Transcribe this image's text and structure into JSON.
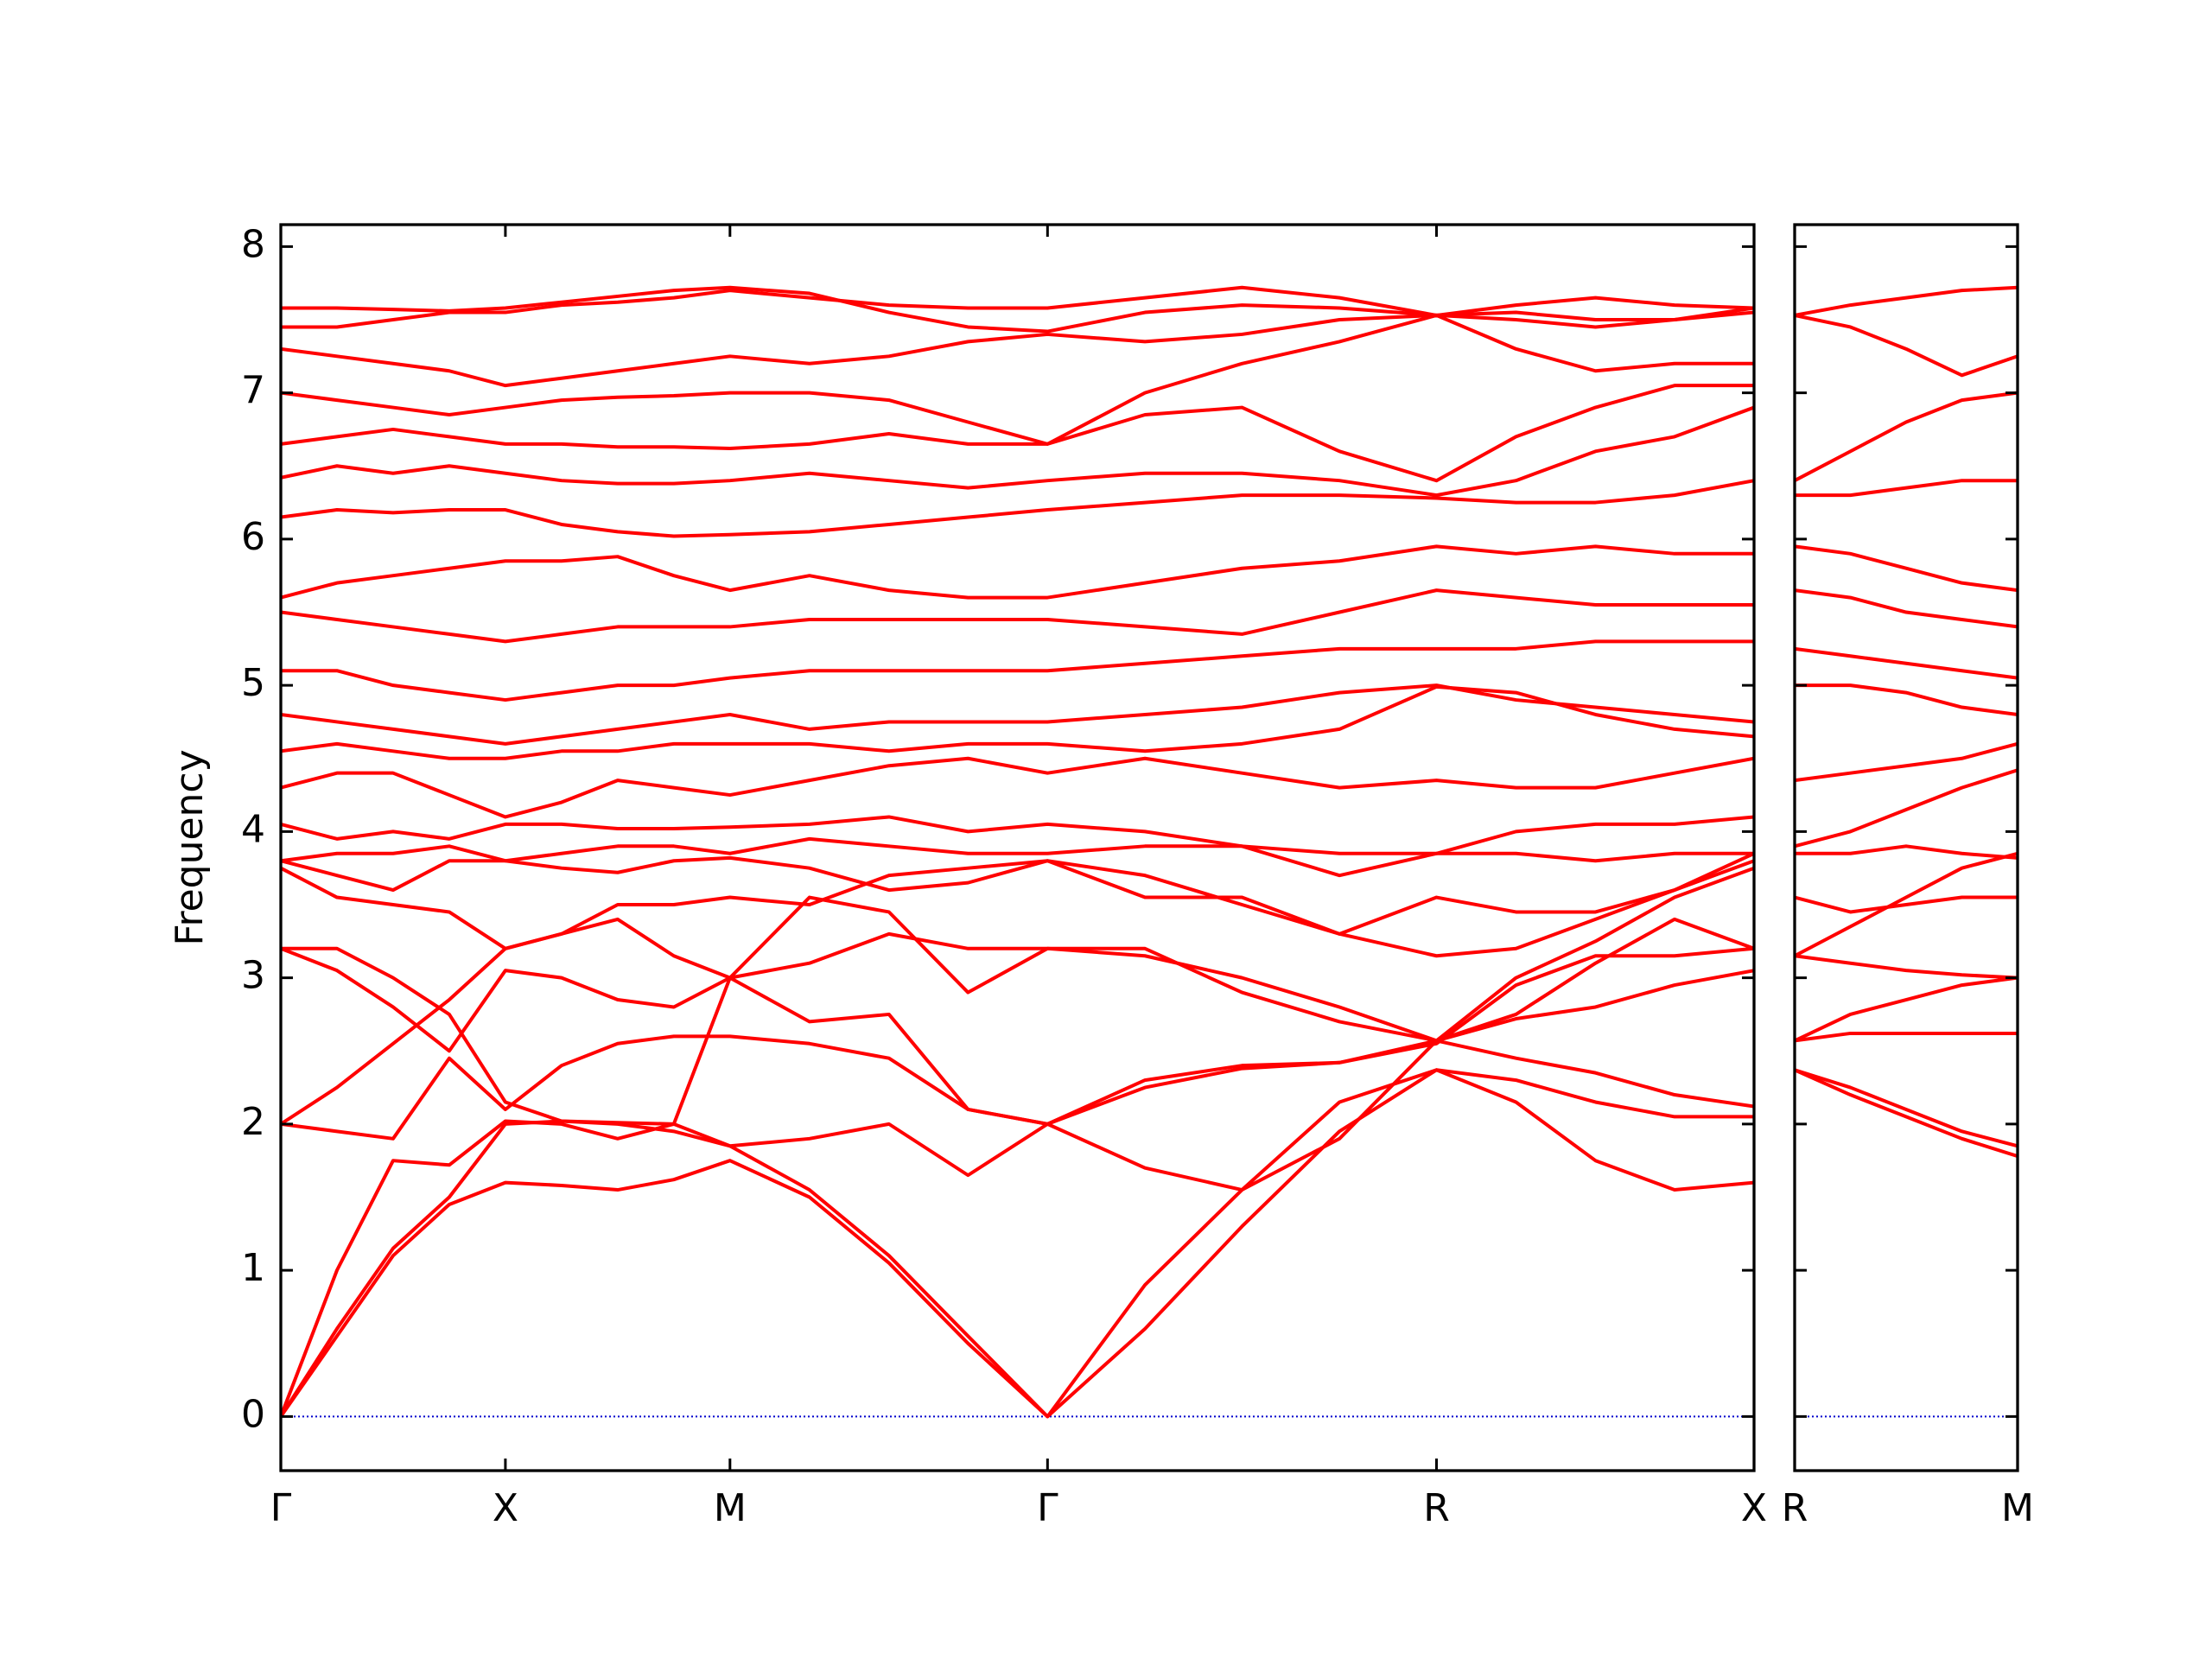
{
  "chart_data": [
    {
      "type": "line",
      "ylabel": "Frequency",
      "color": "#ff0000",
      "hline": 0,
      "hline_color": "#0000cc",
      "ytick_labels": true,
      "xlim": [
        0,
        3.28
      ],
      "ylim": [
        -0.37,
        8.15
      ],
      "xticks": [
        {
          "value": 0,
          "label": "Γ"
        },
        {
          "value": 0.5,
          "label": "X"
        },
        {
          "value": 1.0,
          "label": "M"
        },
        {
          "value": 1.707,
          "label": "Γ"
        },
        {
          "value": 2.573,
          "label": "R"
        },
        {
          "value": 3.28,
          "label": "X"
        }
      ],
      "yticks": [
        0,
        1,
        2,
        3,
        4,
        5,
        6,
        7,
        8
      ],
      "x": [
        0,
        0.125,
        0.25,
        0.375,
        0.5,
        0.625,
        0.75,
        0.875,
        1.0,
        1.177,
        1.354,
        1.53,
        1.707,
        1.924,
        2.14,
        2.357,
        2.573,
        2.75,
        2.927,
        3.103,
        3.28
      ],
      "series": [
        {
          "values": [
            0,
            0.55,
            1.1,
            1.45,
            1.6,
            1.58,
            1.55,
            1.62,
            1.75,
            1.5,
            1.05,
            0.5,
            0,
            0.6,
            1.3,
            1.95,
            2.37,
            2.15,
            1.75,
            1.55,
            1.6
          ]
        },
        {
          "values": [
            0,
            0.6,
            1.15,
            1.5,
            2.0,
            2.02,
            2.0,
            1.95,
            1.85,
            1.55,
            1.1,
            0.55,
            0,
            0.9,
            1.55,
            2.15,
            2.37,
            2.3,
            2.15,
            2.05,
            2.05
          ]
        },
        {
          "values": [
            0,
            1.0,
            1.75,
            1.72,
            2.02,
            2.0,
            1.9,
            2.0,
            1.85,
            1.9,
            2.0,
            1.65,
            2.0,
            2.25,
            2.38,
            2.42,
            2.57,
            2.45,
            2.35,
            2.2,
            2.12
          ]
        },
        {
          "values": [
            2.0,
            1.95,
            1.9,
            2.45,
            2.1,
            2.4,
            2.55,
            2.6,
            2.6,
            2.55,
            2.45,
            2.1,
            2.0,
            1.7,
            1.55,
            1.9,
            2.57,
            2.72,
            2.8,
            2.95,
            3.05
          ]
        },
        {
          "values": [
            2.0,
            2.25,
            2.55,
            2.85,
            3.2,
            3.3,
            3.4,
            3.15,
            3.0,
            2.7,
            2.75,
            2.1,
            2.0,
            2.3,
            2.4,
            2.42,
            2.55,
            2.95,
            3.15,
            3.15,
            3.2
          ]
        },
        {
          "values": [
            3.2,
            3.2,
            3.0,
            2.75,
            2.15,
            2.02,
            2.01,
            2.0,
            3.0,
            3.1,
            3.3,
            3.2,
            3.2,
            3.15,
            3.0,
            2.8,
            2.57,
            2.75,
            3.1,
            3.4,
            3.2
          ]
        },
        {
          "values": [
            3.2,
            3.05,
            2.8,
            2.5,
            3.05,
            3.0,
            2.85,
            2.8,
            3.0,
            3.55,
            3.45,
            2.9,
            3.2,
            3.2,
            2.9,
            2.7,
            2.57,
            3.0,
            3.25,
            3.55,
            3.75
          ]
        },
        {
          "values": [
            3.75,
            3.55,
            3.5,
            3.45,
            3.2,
            3.3,
            3.5,
            3.5,
            3.55,
            3.5,
            3.7,
            3.75,
            3.8,
            3.7,
            3.5,
            3.3,
            3.15,
            3.2,
            3.4,
            3.6,
            3.8
          ]
        },
        {
          "values": [
            3.8,
            3.7,
            3.6,
            3.8,
            3.8,
            3.75,
            3.72,
            3.8,
            3.82,
            3.75,
            3.6,
            3.65,
            3.8,
            3.55,
            3.55,
            3.3,
            3.55,
            3.45,
            3.45,
            3.6,
            3.85
          ]
        },
        {
          "values": [
            3.8,
            3.85,
            3.85,
            3.9,
            3.8,
            3.85,
            3.9,
            3.9,
            3.85,
            3.95,
            3.9,
            3.85,
            3.85,
            3.9,
            3.9,
            3.85,
            3.85,
            3.85,
            3.8,
            3.85,
            3.85
          ]
        },
        {
          "values": [
            4.05,
            3.95,
            4.0,
            3.95,
            4.05,
            4.05,
            4.02,
            4.02,
            4.03,
            4.05,
            4.1,
            4.0,
            4.05,
            4.0,
            3.9,
            3.7,
            3.85,
            4.0,
            4.05,
            4.05,
            4.1
          ]
        },
        {
          "values": [
            4.3,
            4.4,
            4.4,
            4.25,
            4.1,
            4.2,
            4.35,
            4.3,
            4.25,
            4.35,
            4.45,
            4.5,
            4.4,
            4.5,
            4.4,
            4.3,
            4.35,
            4.3,
            4.3,
            4.4,
            4.5
          ]
        },
        {
          "values": [
            4.55,
            4.6,
            4.55,
            4.5,
            4.5,
            4.55,
            4.55,
            4.6,
            4.6,
            4.6,
            4.55,
            4.6,
            4.6,
            4.55,
            4.6,
            4.7,
            4.99,
            4.95,
            4.8,
            4.7,
            4.65
          ]
        },
        {
          "values": [
            4.8,
            4.75,
            4.7,
            4.65,
            4.6,
            4.65,
            4.7,
            4.75,
            4.8,
            4.7,
            4.75,
            4.75,
            4.75,
            4.8,
            4.85,
            4.95,
            5.0,
            4.9,
            4.85,
            4.8,
            4.75
          ]
        },
        {
          "values": [
            5.1,
            5.1,
            5.0,
            4.95,
            4.9,
            4.95,
            5.0,
            5.0,
            5.05,
            5.1,
            5.1,
            5.1,
            5.1,
            5.15,
            5.2,
            5.25,
            5.25,
            5.25,
            5.3,
            5.3,
            5.3
          ]
        },
        {
          "values": [
            5.5,
            5.45,
            5.4,
            5.35,
            5.3,
            5.35,
            5.4,
            5.4,
            5.4,
            5.45,
            5.45,
            5.45,
            5.45,
            5.4,
            5.35,
            5.5,
            5.65,
            5.6,
            5.55,
            5.55,
            5.55
          ]
        },
        {
          "values": [
            5.6,
            5.7,
            5.75,
            5.8,
            5.85,
            5.85,
            5.88,
            5.75,
            5.65,
            5.75,
            5.65,
            5.6,
            5.6,
            5.7,
            5.8,
            5.85,
            5.95,
            5.9,
            5.95,
            5.9,
            5.9
          ]
        },
        {
          "values": [
            6.15,
            6.2,
            6.18,
            6.2,
            6.2,
            6.1,
            6.05,
            6.02,
            6.03,
            6.05,
            6.1,
            6.15,
            6.2,
            6.25,
            6.3,
            6.3,
            6.28,
            6.25,
            6.25,
            6.3,
            6.4
          ]
        },
        {
          "values": [
            6.42,
            6.5,
            6.45,
            6.5,
            6.45,
            6.4,
            6.38,
            6.38,
            6.4,
            6.45,
            6.4,
            6.35,
            6.4,
            6.45,
            6.45,
            6.4,
            6.3,
            6.4,
            6.6,
            6.7,
            6.9
          ]
        },
        {
          "values": [
            6.65,
            6.7,
            6.75,
            6.7,
            6.65,
            6.65,
            6.63,
            6.63,
            6.62,
            6.65,
            6.72,
            6.65,
            6.65,
            6.85,
            6.9,
            6.6,
            6.4,
            6.7,
            6.9,
            7.05,
            7.05
          ]
        },
        {
          "values": [
            7.0,
            6.95,
            6.9,
            6.85,
            6.9,
            6.95,
            6.97,
            6.98,
            7.0,
            7.0,
            6.95,
            6.8,
            6.65,
            7.0,
            7.2,
            7.35,
            7.53,
            7.3,
            7.15,
            7.2,
            7.2
          ]
        },
        {
          "values": [
            7.3,
            7.25,
            7.2,
            7.15,
            7.05,
            7.1,
            7.15,
            7.2,
            7.25,
            7.2,
            7.25,
            7.35,
            7.4,
            7.35,
            7.4,
            7.5,
            7.53,
            7.5,
            7.45,
            7.5,
            7.55
          ]
        },
        {
          "values": [
            7.45,
            7.45,
            7.5,
            7.55,
            7.55,
            7.6,
            7.62,
            7.65,
            7.7,
            7.65,
            7.6,
            7.58,
            7.58,
            7.65,
            7.72,
            7.65,
            7.53,
            7.6,
            7.65,
            7.6,
            7.58
          ]
        },
        {
          "values": [
            7.58,
            7.58,
            7.57,
            7.56,
            7.58,
            7.62,
            7.66,
            7.7,
            7.72,
            7.68,
            7.55,
            7.45,
            7.42,
            7.55,
            7.6,
            7.58,
            7.53,
            7.55,
            7.5,
            7.5,
            7.58
          ]
        }
      ]
    },
    {
      "type": "line",
      "color": "#ff0000",
      "hline": 0,
      "hline_color": "#0000cc",
      "ytick_labels": false,
      "xlim": [
        0,
        0.5
      ],
      "ylim": [
        -0.37,
        8.15
      ],
      "xticks": [
        {
          "value": 0,
          "label": "R"
        },
        {
          "value": 0.5,
          "label": "M"
        }
      ],
      "yticks": [
        0,
        1,
        2,
        3,
        4,
        5,
        6,
        7,
        8
      ],
      "x": [
        0,
        0.125,
        0.25,
        0.375,
        0.5
      ],
      "series": [
        {
          "values": [
            2.37,
            2.2,
            2.05,
            1.9,
            1.78
          ]
        },
        {
          "values": [
            2.37,
            2.25,
            2.1,
            1.95,
            1.85
          ]
        },
        {
          "values": [
            2.57,
            2.62,
            2.62,
            2.62,
            2.62
          ]
        },
        {
          "values": [
            2.57,
            2.75,
            2.85,
            2.95,
            3.0
          ]
        },
        {
          "values": [
            3.15,
            3.1,
            3.05,
            3.02,
            3.0
          ]
        },
        {
          "values": [
            3.15,
            3.35,
            3.55,
            3.75,
            3.85
          ]
        },
        {
          "values": [
            3.55,
            3.45,
            3.5,
            3.55,
            3.55
          ]
        },
        {
          "values": [
            3.85,
            3.85,
            3.9,
            3.85,
            3.82
          ]
        },
        {
          "values": [
            3.9,
            4.0,
            4.15,
            4.3,
            4.42
          ]
        },
        {
          "values": [
            4.35,
            4.4,
            4.45,
            4.5,
            4.6
          ]
        },
        {
          "values": [
            5.0,
            5.0,
            4.95,
            4.85,
            4.8
          ]
        },
        {
          "values": [
            5.25,
            5.2,
            5.15,
            5.1,
            5.05
          ]
        },
        {
          "values": [
            5.65,
            5.6,
            5.5,
            5.45,
            5.4
          ]
        },
        {
          "values": [
            5.95,
            5.9,
            5.8,
            5.7,
            5.65
          ]
        },
        {
          "values": [
            6.3,
            6.3,
            6.35,
            6.4,
            6.4
          ]
        },
        {
          "values": [
            6.4,
            6.6,
            6.8,
            6.95,
            7.0
          ]
        },
        {
          "values": [
            7.53,
            7.6,
            7.65,
            7.7,
            7.72
          ]
        },
        {
          "values": [
            7.53,
            7.45,
            7.3,
            7.12,
            7.25
          ]
        }
      ]
    }
  ]
}
